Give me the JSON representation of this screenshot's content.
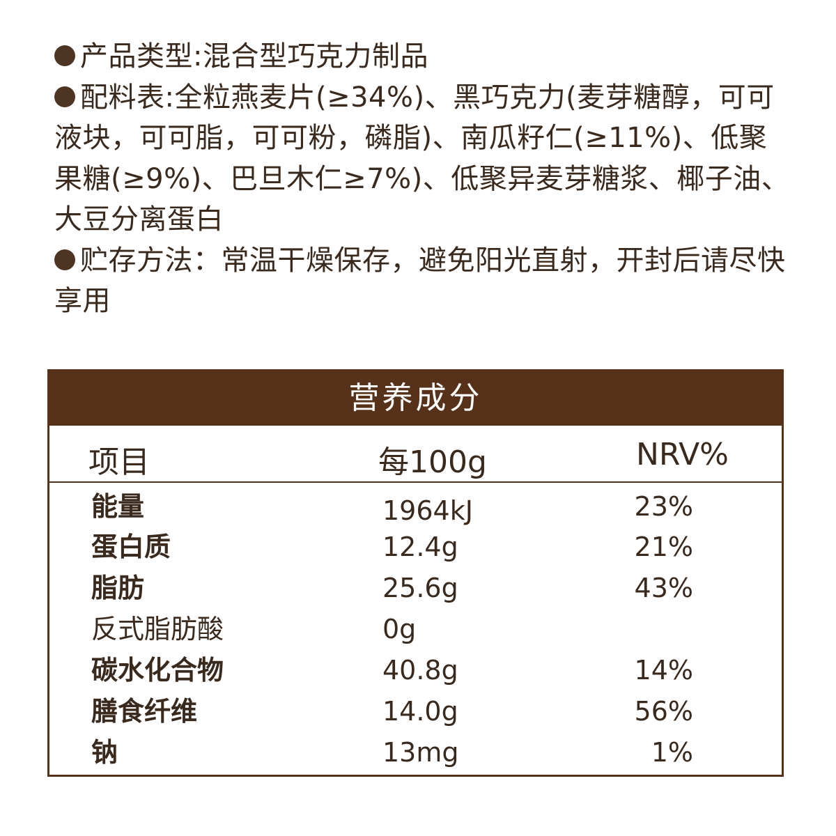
{
  "info": {
    "type_line": "产品类型:混合型巧克力制品",
    "ingredients_line": "配料表:全粒燕麦片(≥34%)、黑巧克力(麦芽糖醇，可可液块，可可脂，可可粉，磷脂)、南瓜籽仁(≥11%)、低聚果糖(≥9%)、巴旦木仁≥7%)、低聚异麦芽糖浆、椰子油、大豆分离蛋白",
    "storage_line": "贮存方法：常温干燥保存，避免阳光直射，开封后请尽快享用"
  },
  "nutrition": {
    "title": "营养成分",
    "headers": [
      "项目",
      "每100g",
      "NRV%"
    ],
    "rows": [
      {
        "name": "能量",
        "per100g": "1964kJ",
        "nrv": "23%"
      },
      {
        "name": "蛋白质",
        "per100g": "12.4g",
        "nrv": "21%"
      },
      {
        "name": "脂肪",
        "per100g": "25.6g",
        "nrv": "43%"
      },
      {
        "name": "反式脂肪酸",
        "per100g": "0g",
        "nrv": ""
      },
      {
        "name": "碳水化合物",
        "per100g": "40.8g",
        "nrv": "14%"
      },
      {
        "name": "膳食纤维",
        "per100g": "14.0g",
        "nrv": "56%"
      },
      {
        "name": "钠",
        "per100g": "13mg",
        "nrv": "1%"
      }
    ]
  },
  "colors": {
    "brand_brown": "#56321a",
    "text": "#3a2a1e",
    "bullet": "#4e3423"
  }
}
